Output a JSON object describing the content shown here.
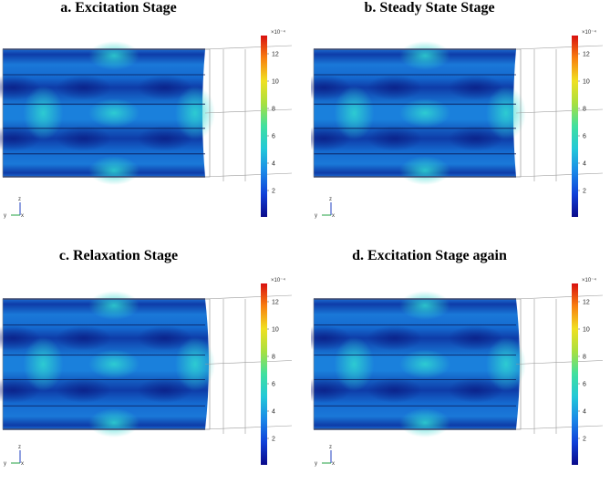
{
  "panels": [
    {
      "title": "a. Excitation Stage",
      "variant": 0
    },
    {
      "title": "b. Steady State Stage",
      "variant": 0
    },
    {
      "title": "c. Relaxation Stage",
      "variant": 1
    },
    {
      "title": "d. Excitation Stage again",
      "variant": 1
    }
  ],
  "colorbar": {
    "exponent": "×10⁻⁴",
    "ticks": [
      "12",
      "10",
      "8",
      "6",
      "4",
      "2"
    ],
    "colors": [
      "#0a0a8a",
      "#1040d8",
      "#1a88e8",
      "#22c8d8",
      "#40e0a0",
      "#a8e040",
      "#f0e020",
      "#f88010",
      "#d81010"
    ]
  },
  "axes": {
    "z_label": "z",
    "y_label": "y",
    "x_label": "x"
  }
}
